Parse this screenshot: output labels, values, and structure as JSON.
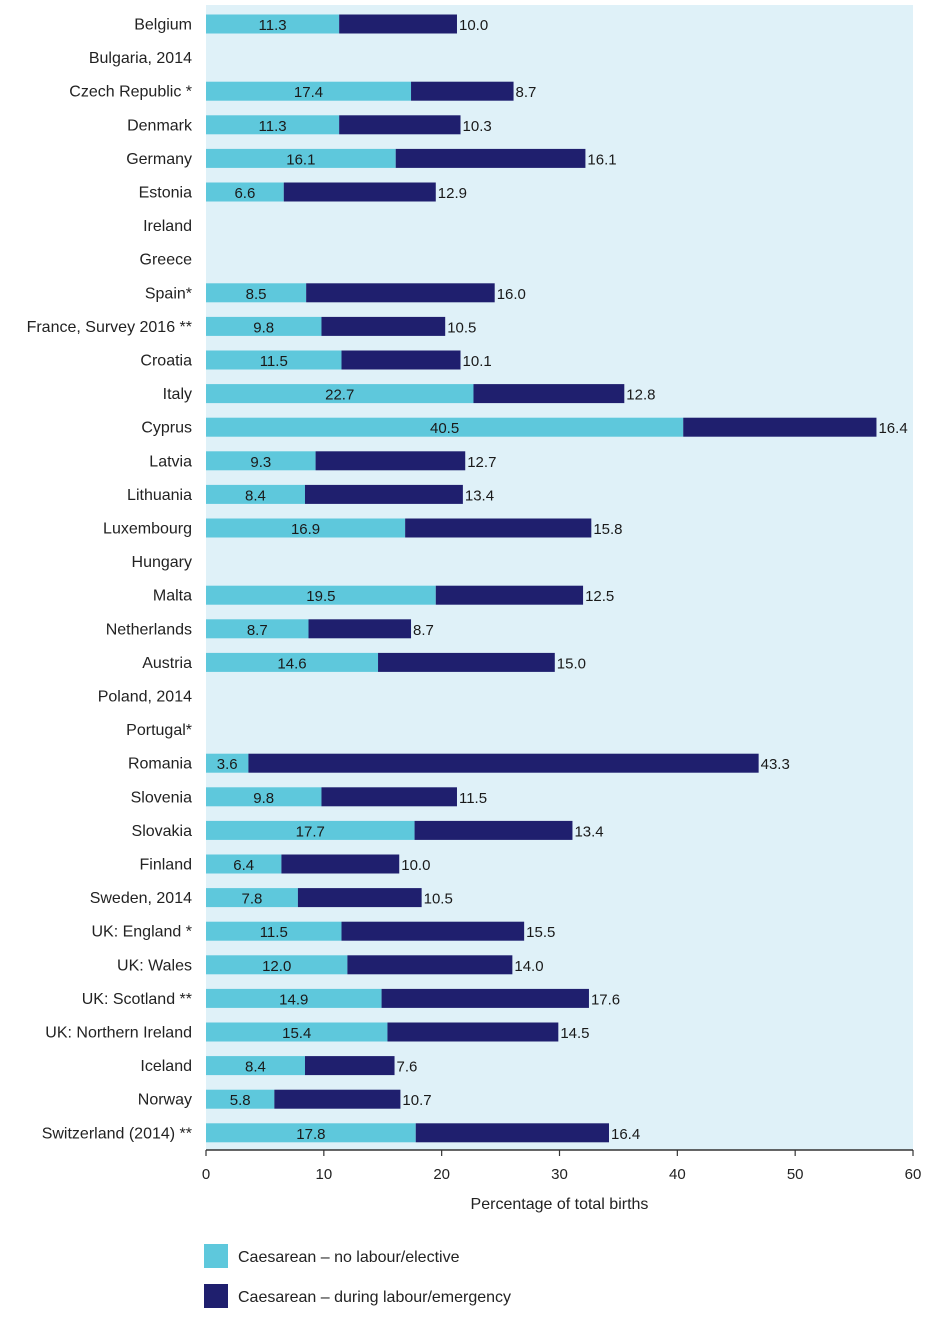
{
  "colors": {
    "plot_bg": "#dff1f8",
    "elective": "#5ec8dc",
    "emergency": "#1f1f6e",
    "axis": "#333333"
  },
  "chart_data": {
    "type": "bar",
    "orientation": "horizontal",
    "stacked": true,
    "categories": [
      "Belgium",
      "Bulgaria, 2014",
      "Czech Republic *",
      "Denmark",
      "Germany",
      "Estonia",
      "Ireland",
      "Greece",
      "Spain*",
      "France, Survey 2016 **",
      "Croatia",
      "Italy",
      "Cyprus",
      "Latvia",
      "Lithuania",
      "Luxembourg",
      "Hungary",
      "Malta",
      "Netherlands",
      "Austria",
      "Poland, 2014",
      "Portugal*",
      "Romania",
      "Slovenia",
      "Slovakia",
      "Finland",
      "Sweden, 2014",
      "UK: England *",
      "UK: Wales",
      "UK: Scotland **",
      "UK: Northern Ireland",
      "Iceland",
      "Norway",
      "Switzerland (2014) **"
    ],
    "series": [
      {
        "name": "Caesarean – no labour/elective",
        "values": [
          11.3,
          null,
          17.4,
          11.3,
          16.1,
          6.6,
          null,
          null,
          8.5,
          9.8,
          11.5,
          22.7,
          40.5,
          9.3,
          8.4,
          16.9,
          null,
          19.5,
          8.7,
          14.6,
          null,
          null,
          3.6,
          9.8,
          17.7,
          6.4,
          7.8,
          11.5,
          12.0,
          14.9,
          15.4,
          8.4,
          5.8,
          17.8
        ],
        "labels": [
          "11.3",
          "",
          "17.4",
          "11.3",
          "16.1",
          "6.6",
          "",
          "",
          "8.5",
          "9.8",
          "11.5",
          "22.7",
          "40.5",
          "9.3",
          "8.4",
          "16.9",
          "",
          "19.5",
          "8.7",
          "14.6",
          "",
          "",
          "3.6",
          "9.8",
          "17.7",
          "6.4",
          "7.8",
          "11.5",
          "12.0",
          "14.9",
          "15.4",
          "8.4",
          "5.8",
          "17.8"
        ]
      },
      {
        "name": "Caesarean – during labour/emergency",
        "values": [
          10.0,
          null,
          8.7,
          10.3,
          16.1,
          12.9,
          null,
          null,
          16.0,
          10.5,
          10.1,
          12.8,
          16.4,
          12.7,
          13.4,
          15.8,
          null,
          12.5,
          8.7,
          15.0,
          null,
          null,
          43.3,
          11.5,
          13.4,
          10.0,
          10.5,
          15.5,
          14.0,
          17.6,
          14.5,
          7.6,
          10.7,
          16.4
        ],
        "labels": [
          "10.0",
          "",
          "8.7",
          "10.3",
          "16.1",
          "12.9",
          "",
          "",
          "16.0",
          "10.5",
          "10.1",
          "12.8",
          "16.4",
          "12.7",
          "13.4",
          "15.8",
          "",
          "12.5",
          "8.7",
          "15.0",
          "",
          "",
          "43.3",
          "11.5",
          "13.4",
          "10.0",
          "10.5",
          "15.5",
          "14.0",
          "17.6",
          "14.5",
          "7.6",
          "10.7",
          "16.4"
        ]
      }
    ],
    "xlabel": "Percentage of total births",
    "xlim": [
      0,
      60
    ],
    "xticks": [
      0,
      10,
      20,
      30,
      40,
      50,
      60
    ],
    "xtick_labels": [
      "0",
      "10",
      "20",
      "30",
      "40",
      "50",
      "60"
    ],
    "legend": {
      "placement": "bottom-left",
      "items": [
        {
          "label": "Caesarean – no labour/elective"
        },
        {
          "label": "Caesarean – during labour/emergency"
        }
      ]
    },
    "grid": false
  }
}
